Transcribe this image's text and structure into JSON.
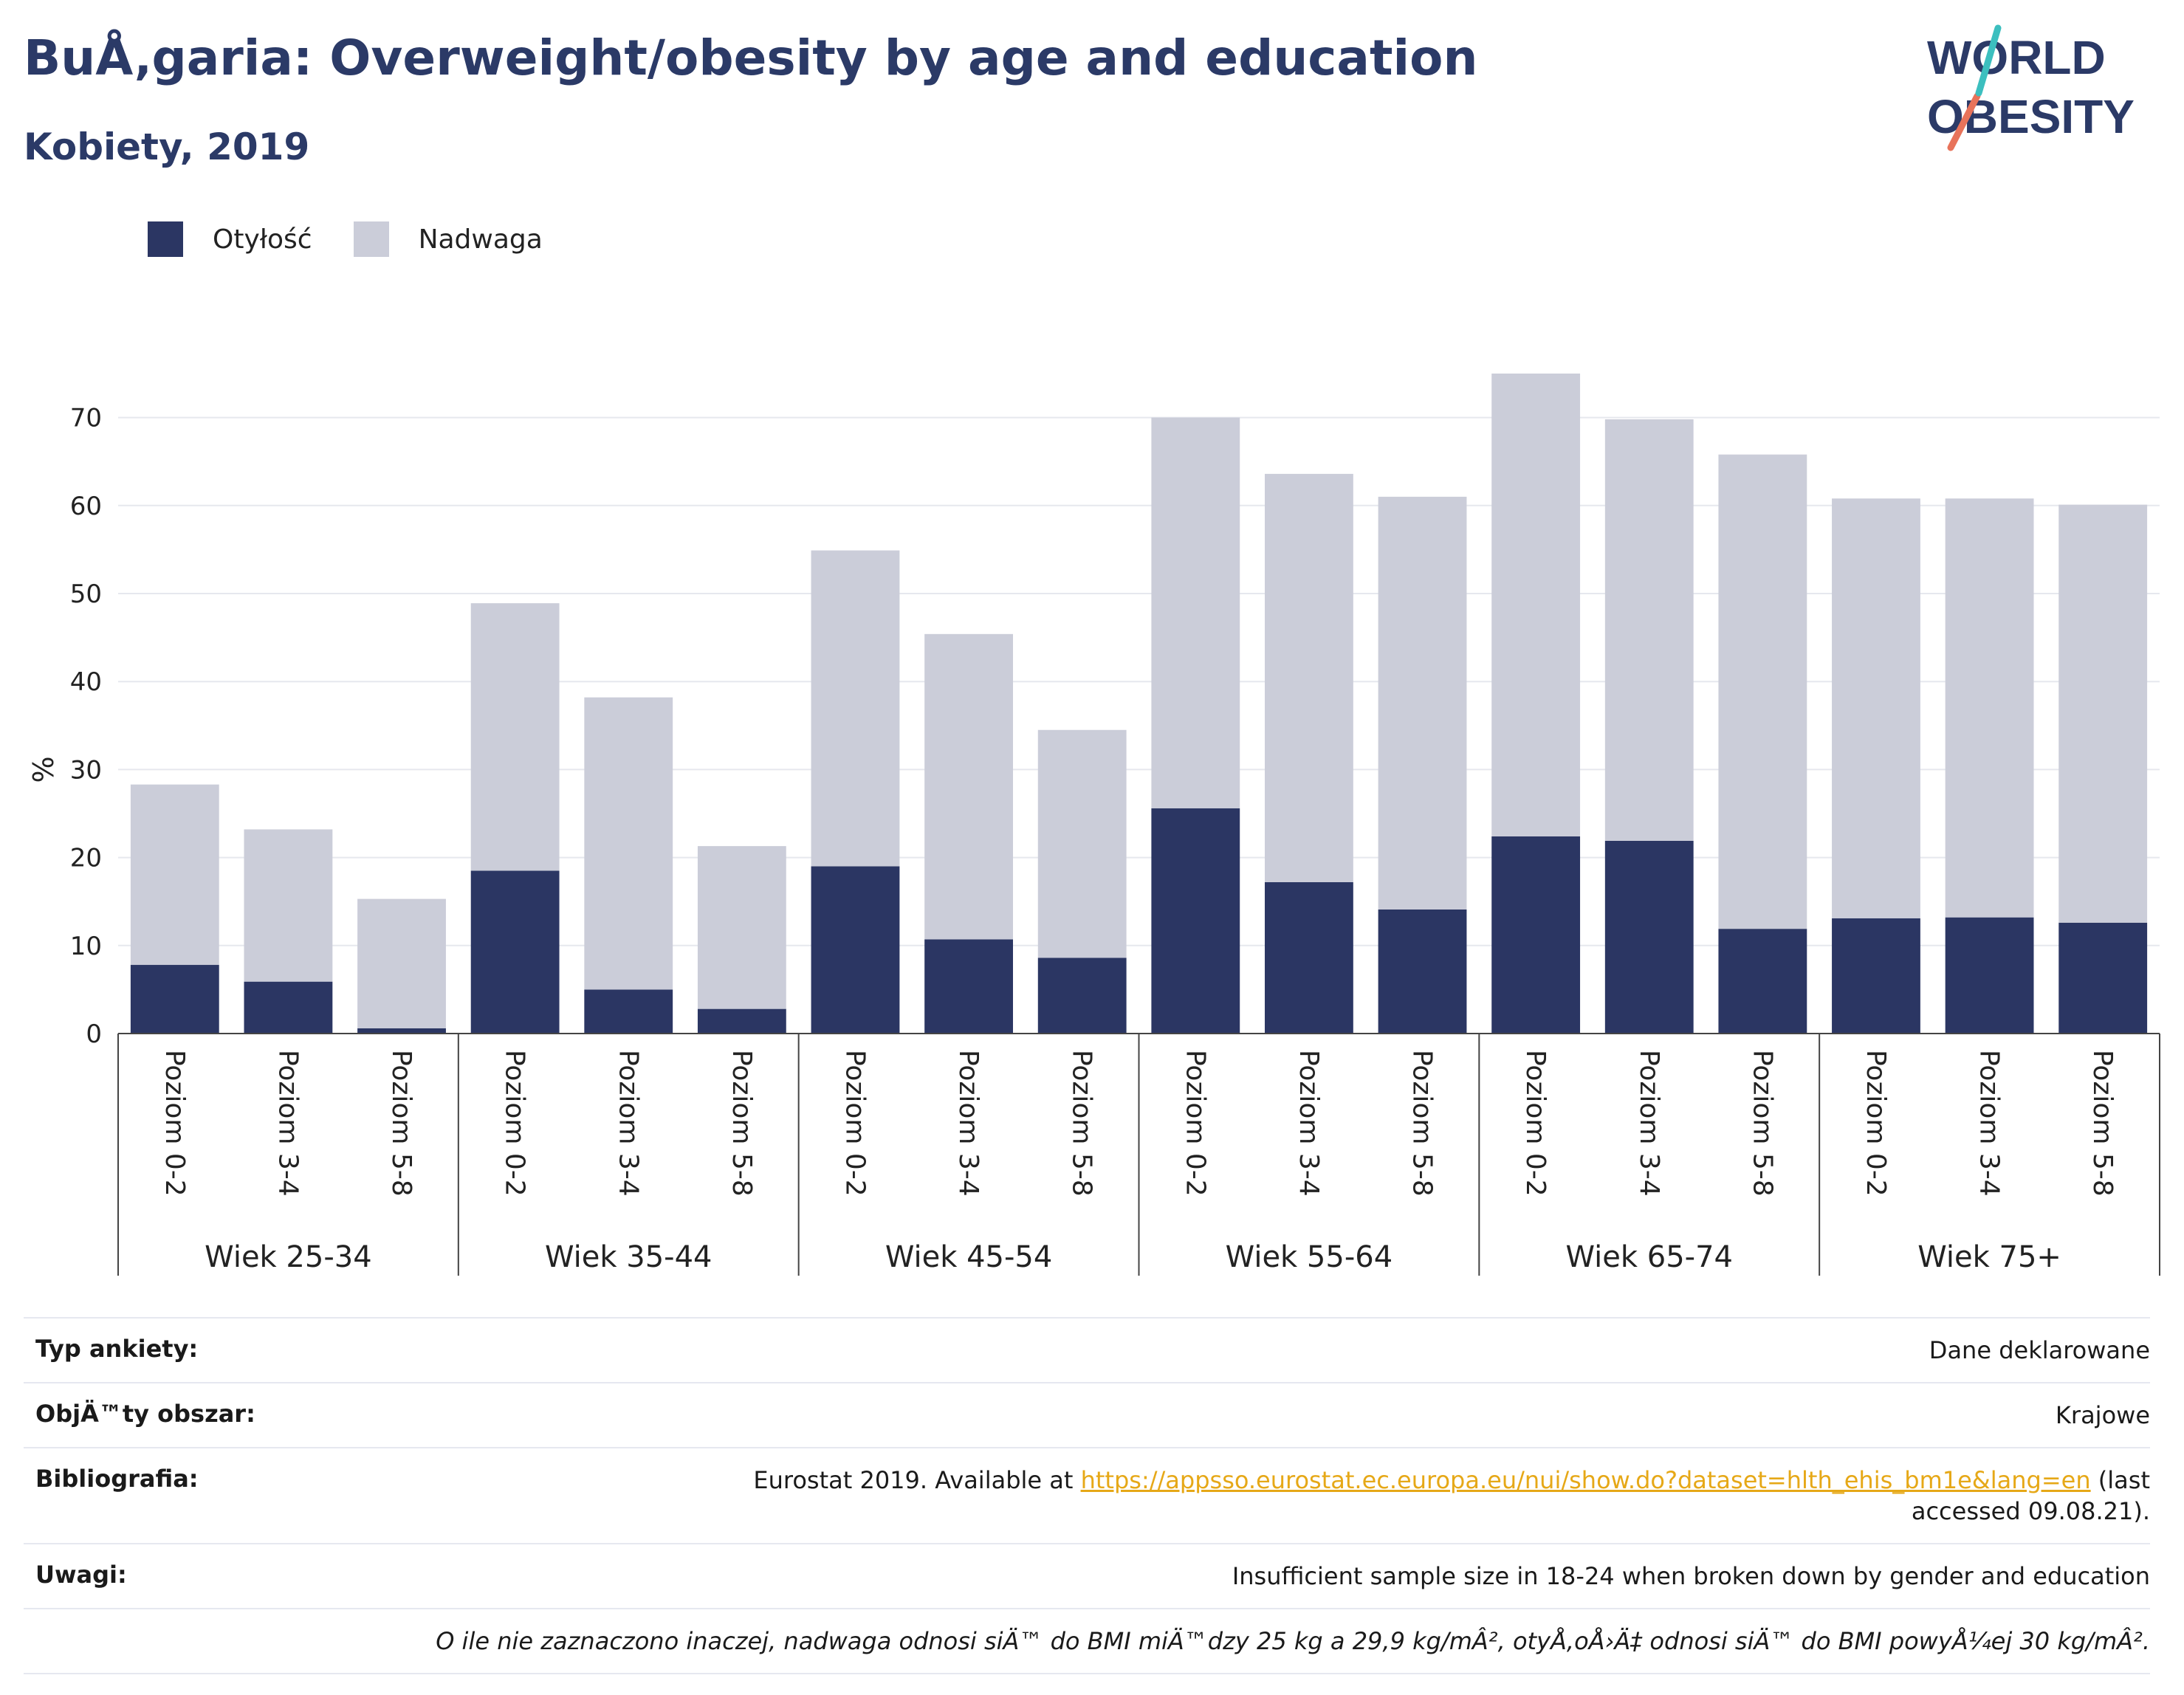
{
  "header": {
    "title": "BuÅ‚garia: Overweight/obesity by age and education",
    "subtitle": "Kobiety, 2019"
  },
  "logo": {
    "line1": "WORLD",
    "line2": "OBESITY"
  },
  "legend": [
    {
      "label": "Otyłość",
      "color": "#2b3663"
    },
    {
      "label": "Nadwaga",
      "color": "#cbcdd9"
    }
  ],
  "chart_data": {
    "type": "bar",
    "stacked": true,
    "ylabel": "%",
    "ylim": [
      0,
      80
    ],
    "yticks": [
      0,
      10,
      20,
      30,
      40,
      50,
      60,
      70
    ],
    "grid": true,
    "legend_position": "top-left",
    "groups": [
      "Wiek 25-34",
      "Wiek 35-44",
      "Wiek 45-54",
      "Wiek 55-64",
      "Wiek 65-74",
      "Wiek 75+"
    ],
    "subcategories": [
      "Poziom 0-2",
      "Poziom 3-4",
      "Poziom 5-8"
    ],
    "series": [
      {
        "name": "Otyłość",
        "color": "#2b3663",
        "values": [
          7.8,
          5.9,
          0.6,
          18.5,
          5.0,
          2.8,
          19.0,
          10.7,
          8.6,
          25.6,
          17.2,
          14.1,
          22.4,
          21.9,
          11.9,
          13.1,
          13.2,
          12.6
        ]
      },
      {
        "name": "Nadwaga",
        "color": "#cbcdd9",
        "values": [
          20.5,
          17.3,
          14.7,
          30.4,
          33.2,
          18.5,
          35.9,
          34.7,
          25.9,
          44.4,
          46.4,
          46.9,
          52.6,
          47.9,
          53.9,
          47.7,
          47.6,
          47.5
        ]
      }
    ]
  },
  "meta": {
    "rows": [
      {
        "key": "Typ ankiety:",
        "value": "Dane deklarowane"
      },
      {
        "key": "ObjÄ™ty obszar:",
        "value": "Krajowe"
      }
    ],
    "bibliography": {
      "key": "Bibliografia:",
      "prefix": "Eurostat 2019. Available at ",
      "link": "https://appsso.eurostat.ec.europa.eu/nui/show.do?dataset=hlth_ehis_bm1e&lang=en",
      "suffix": " (last accessed 09.08.21)."
    },
    "notes": {
      "key": "Uwagi:",
      "value": "Insufficient sample size in 18-24 when broken down by gender and education"
    },
    "footnote": "O ile nie zaznaczono inaczej, nadwaga odnosi siÄ™ do BMI miÄ™dzy 25 kg a 29,9 kg/mÂ², otyÅ‚oÅ›Ä‡ odnosi siÄ™ do BMI powyÅ¼ej 30 kg/mÂ²."
  }
}
